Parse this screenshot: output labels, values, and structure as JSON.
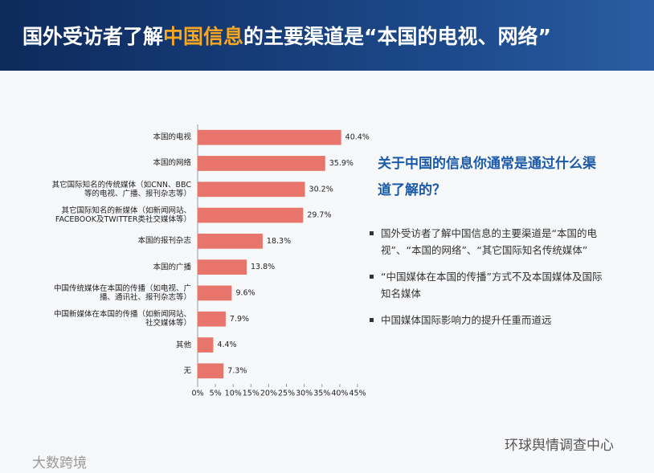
{
  "header": {
    "title_parts": [
      "国外受访者了解",
      "中国信息",
      "的主要渠道是“本国的电视、网络”"
    ]
  },
  "chart_data": {
    "type": "hbar",
    "categories": [
      "本国的电视",
      "本国的网络",
      "其它国际知名的传统媒体（如CNN、BBC\n等的电视、广播、报刊杂志等）",
      "其它国际知名的新媒体（如新闻网站、\nFACEBOOK及TWITTER类社交媒体等）",
      "本国的报刊杂志",
      "本国的广播",
      "中国传统媒体在本国的传播（如电视、广\n播、通讯社、报刊杂志等）",
      "中国新媒体在本国的传播（如新闻网站、\n社交媒体等）",
      "其他",
      "无"
    ],
    "values": [
      40.4,
      35.9,
      30.2,
      29.7,
      18.3,
      13.8,
      9.6,
      7.9,
      4.4,
      7.3
    ],
    "value_labels": [
      "40.4%",
      "35.9%",
      "30.2%",
      "29.7%",
      "18.3%",
      "13.8%",
      "9.6%",
      "7.9%",
      "4.4%",
      "7.3%"
    ],
    "color": "#e8756b",
    "xlim": [
      0,
      45
    ],
    "xticks": [
      {
        "value": 0,
        "label": "0%"
      },
      {
        "value": 5,
        "label": "5%"
      },
      {
        "value": 10,
        "label": "10%"
      },
      {
        "value": 15,
        "label": "15%"
      },
      {
        "value": 20,
        "label": "20%"
      },
      {
        "value": 25,
        "label": "25%"
      },
      {
        "value": 30,
        "label": "30%"
      },
      {
        "value": 35,
        "label": "35%"
      },
      {
        "value": 40,
        "label": "40%"
      },
      {
        "value": 45,
        "label": "45%"
      }
    ]
  },
  "sidebar": {
    "heading": "关于中国的信息你通常是通过什么渠道了解的？",
    "bullets": [
      "国外受访者了解中国信息的主要渠道是“本国的电视”、“本国的网络”、“其它国际知名传统媒体”",
      "“中国媒体在本国的传播”方式不及本国媒体及国际知名媒体",
      "中国媒体国际影响力的提升任重而道远"
    ]
  },
  "footer": {
    "left_watermark": "大数跨境",
    "right_watermark": "环球舆情调查中心"
  }
}
